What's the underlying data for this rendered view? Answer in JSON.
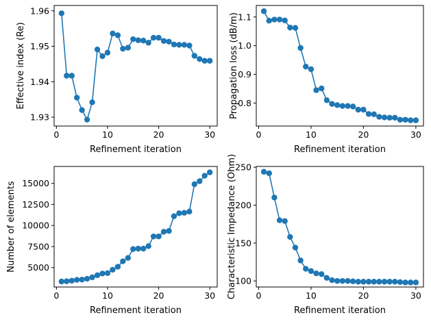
{
  "figure": {
    "series_color": "#1f77b4"
  },
  "chart_data": [
    {
      "type": "line",
      "xlabel": "Refinement iteration",
      "ylabel": "Effective index (Re)",
      "xlim": [
        -0.45,
        31.45
      ],
      "ylim": [
        1.9275,
        1.9615
      ],
      "xticks": [
        0,
        10,
        20,
        30
      ],
      "xtick_labels": [
        "0",
        "10",
        "20",
        "30"
      ],
      "yticks": [
        1.93,
        1.94,
        1.95,
        1.96
      ],
      "ytick_labels": [
        "1.93",
        "1.94",
        "1.95",
        "1.96"
      ],
      "grid": false,
      "markers": true,
      "series": [
        {
          "x": [
            1,
            2,
            3,
            4,
            5,
            6,
            7,
            8,
            9,
            10,
            11,
            12,
            13,
            14,
            15,
            16,
            17,
            18,
            19,
            20,
            21,
            22,
            23,
            24,
            25,
            26,
            27,
            28,
            29,
            30
          ],
          "values": [
            1.9593,
            1.9417,
            1.9417,
            1.9355,
            1.932,
            1.9293,
            1.9342,
            1.9491,
            1.9472,
            1.9482,
            1.9536,
            1.9531,
            1.9493,
            1.9496,
            1.952,
            1.9517,
            1.9516,
            1.951,
            1.9524,
            1.9524,
            1.9515,
            1.9513,
            1.9505,
            1.9504,
            1.9504,
            1.9502,
            1.9473,
            1.9464,
            1.9459,
            1.9459
          ]
        }
      ]
    },
    {
      "type": "line",
      "xlabel": "Refinement iteration",
      "ylabel": "Propagation loss (dB/m)",
      "xlim": [
        -0.45,
        31.45
      ],
      "ylim": [
        0.72,
        1.14
      ],
      "xticks": [
        0,
        10,
        20,
        30
      ],
      "xtick_labels": [
        "0",
        "10",
        "20",
        "30"
      ],
      "yticks": [
        0.8,
        0.9,
        1.0,
        1.1
      ],
      "ytick_labels": [
        "0.8",
        "0.9",
        "1.0",
        "1.1"
      ],
      "grid": false,
      "markers": true,
      "series": [
        {
          "x": [
            1,
            2,
            3,
            4,
            5,
            6,
            7,
            8,
            9,
            10,
            11,
            12,
            13,
            14,
            15,
            16,
            17,
            18,
            19,
            20,
            21,
            22,
            23,
            24,
            25,
            26,
            27,
            28,
            29,
            30
          ],
          "values": [
            1.12,
            1.087,
            1.091,
            1.091,
            1.088,
            1.063,
            1.062,
            0.992,
            0.927,
            0.918,
            0.845,
            0.851,
            0.81,
            0.797,
            0.793,
            0.79,
            0.79,
            0.788,
            0.777,
            0.777,
            0.762,
            0.761,
            0.752,
            0.75,
            0.749,
            0.749,
            0.742,
            0.742,
            0.74,
            0.74
          ]
        }
      ]
    },
    {
      "type": "line",
      "xlabel": "Refinement iteration",
      "ylabel": "Number of elements",
      "xlim": [
        -0.45,
        31.45
      ],
      "ylim": [
        2700,
        17000
      ],
      "xticks": [
        0,
        10,
        20,
        30
      ],
      "xtick_labels": [
        "0",
        "10",
        "20",
        "30"
      ],
      "yticks": [
        5000,
        7500,
        10000,
        12500,
        15000
      ],
      "ytick_labels": [
        "5000",
        "7500",
        "10000",
        "12500",
        "15000"
      ],
      "grid": false,
      "markers": true,
      "series": [
        {
          "x": [
            1,
            2,
            3,
            4,
            5,
            6,
            7,
            8,
            9,
            10,
            11,
            12,
            13,
            14,
            15,
            16,
            17,
            18,
            19,
            20,
            21,
            22,
            23,
            24,
            25,
            26,
            27,
            28,
            29,
            30
          ],
          "values": [
            3350,
            3380,
            3450,
            3550,
            3580,
            3680,
            3850,
            4100,
            4300,
            4350,
            4750,
            5100,
            5750,
            6150,
            7200,
            7250,
            7250,
            7550,
            8700,
            8700,
            9250,
            9350,
            11100,
            11450,
            11500,
            11650,
            14900,
            15250,
            15900,
            16300
          ]
        }
      ]
    },
    {
      "type": "line",
      "xlabel": "Refinement iteration",
      "ylabel": "Characteristic Impedance (Ohm)",
      "xlim": [
        -0.45,
        31.45
      ],
      "ylim": [
        92,
        251
      ],
      "xticks": [
        0,
        10,
        20,
        30
      ],
      "xtick_labels": [
        "0",
        "10",
        "20",
        "30"
      ],
      "yticks": [
        100,
        150,
        200,
        250
      ],
      "ytick_labels": [
        "100",
        "150",
        "200",
        "250"
      ],
      "grid": false,
      "markers": true,
      "series": [
        {
          "x": [
            1,
            2,
            3,
            4,
            5,
            6,
            7,
            8,
            9,
            10,
            11,
            12,
            13,
            14,
            15,
            16,
            17,
            18,
            19,
            20,
            21,
            22,
            23,
            24,
            25,
            26,
            27,
            28,
            29,
            30
          ],
          "values": [
            244,
            242,
            210,
            180,
            179,
            158,
            144,
            127,
            116,
            113,
            110,
            109,
            104,
            101,
            100,
            100,
            100,
            99.5,
            99,
            99,
            99,
            99,
            99,
            99,
            99,
            99,
            98.5,
            98,
            98,
            98
          ]
        }
      ]
    }
  ]
}
